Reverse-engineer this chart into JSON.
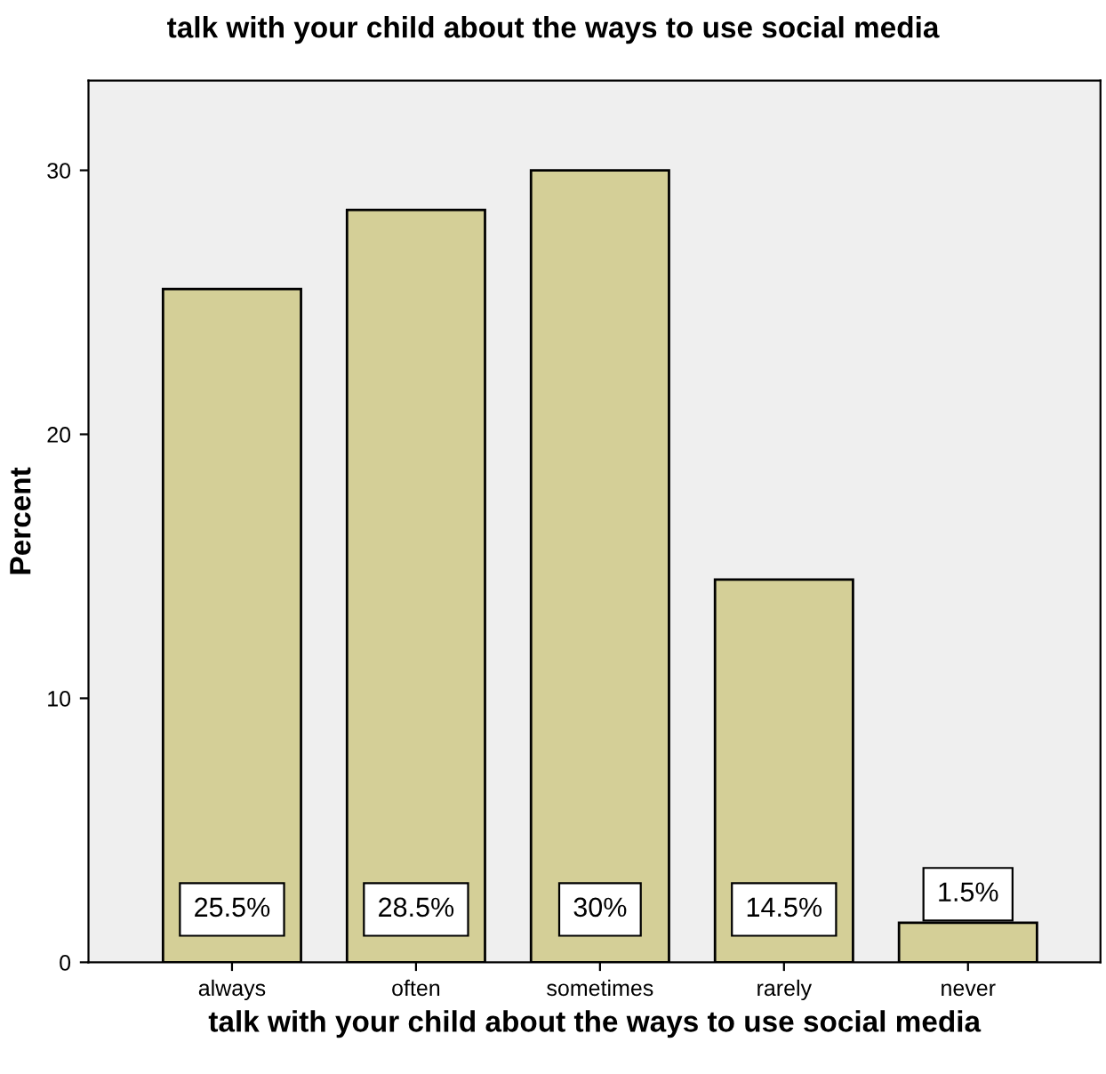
{
  "chart_data": {
    "type": "bar",
    "title": "talk with your child about the ways to use social media",
    "xlabel": "talk with your child about the ways to use social media",
    "ylabel": "Percent",
    "categories": [
      "always",
      "often",
      "sometimes",
      "rarely",
      "never"
    ],
    "values": [
      25.5,
      28.5,
      30,
      14.5,
      1.5
    ],
    "value_labels": [
      "25.5%",
      "28.5%",
      "30%",
      "14.5%",
      "1.5%"
    ],
    "color": "#d4cf97",
    "ylim": [
      0,
      33.4
    ],
    "yticks": [
      0,
      10,
      20,
      30
    ],
    "grid": false,
    "legend": false
  }
}
